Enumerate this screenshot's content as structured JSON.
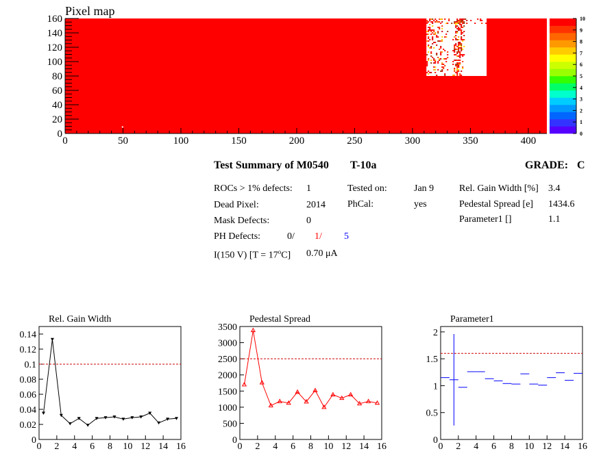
{
  "summary": {
    "title": "Test Summary of M0540",
    "test_label": "T-10a",
    "grade_label": "GRADE:",
    "grade": "C",
    "rocs_label": "ROCs > 1% defects:",
    "rocs_value": "1",
    "dead_label": "Dead Pixel:",
    "dead_value": "2014",
    "mask_label": "Mask Defects:",
    "mask_value": "0",
    "ph_label": "PH Defects:",
    "ph_v1": "0/",
    "ph_v2": "1/",
    "ph_v3": "5",
    "current_label_pre": "I(150 V) [T = 17",
    "current_label_sup": "o",
    "current_label_post": "C]",
    "current_value": "0.70 μA",
    "tested_label": "Tested on:",
    "tested_value": "Jan 9",
    "phcal_label": "PhCal:",
    "phcal_value": "yes",
    "gain_label": "Rel. Gain Width [%]",
    "gain_value": "3.4",
    "ped_label": "Pedestal Spread [e]",
    "ped_value": "1434.6",
    "par_label": "Parameter1 []",
    "par_value": "1.1",
    "colors": {
      "ph_v2": "#ff0000",
      "ph_v3": "#0000ff"
    }
  },
  "chart_data": [
    {
      "type": "heatmap",
      "title": "Pixel map",
      "xlim": [
        0,
        416
      ],
      "ylim": [
        0,
        160
      ],
      "x_ticks": [
        0,
        50,
        100,
        150,
        200,
        250,
        300,
        350,
        400
      ],
      "y_ticks": [
        0,
        20,
        40,
        60,
        80,
        100,
        120,
        140,
        160
      ],
      "z_ticks": [
        0,
        1,
        2,
        3,
        4,
        5,
        6,
        7,
        8,
        9,
        10
      ],
      "fill_value": 10,
      "dead_region": {
        "x": [
          312,
          364
        ],
        "y": [
          80,
          160
        ]
      },
      "isolated_dead_pixel": [
        49,
        10
      ],
      "colors": {
        "fill": "#ff0000",
        "dead": "#ffffff"
      }
    },
    {
      "type": "line",
      "title": "Rel. Gain Width",
      "xlim": [
        0,
        16
      ],
      "ylim": [
        0,
        0.15
      ],
      "x_ticks": [
        0,
        2,
        4,
        6,
        8,
        10,
        12,
        14,
        16
      ],
      "y_ticks": [
        0,
        0.02,
        0.04,
        0.06,
        0.08,
        0.1,
        0.12,
        0.14
      ],
      "y_tick_labels": [
        "0",
        "0.02",
        "0.04",
        "0.06",
        "0.08",
        "0.1",
        "0.12",
        "0.14"
      ],
      "x": [
        0.5,
        1.5,
        2.5,
        3.5,
        4.5,
        5.5,
        6.5,
        7.5,
        8.5,
        9.5,
        10.5,
        11.5,
        12.5,
        13.5,
        14.5,
        15.5
      ],
      "values": [
        0.035,
        0.133,
        0.032,
        0.021,
        0.028,
        0.019,
        0.028,
        0.029,
        0.03,
        0.027,
        0.029,
        0.03,
        0.035,
        0.022,
        0.027,
        0.028
      ],
      "threshold": 0.1,
      "colors": {
        "line": "#000000",
        "threshold": "#cc0000"
      }
    },
    {
      "type": "line",
      "title": "Pedestal Spread",
      "xlim": [
        0,
        16
      ],
      "ylim": [
        0,
        3500
      ],
      "x_ticks": [
        0,
        2,
        4,
        6,
        8,
        10,
        12,
        14,
        16
      ],
      "y_ticks": [
        0,
        500,
        1000,
        1500,
        2000,
        2500,
        3000,
        3500
      ],
      "y_tick_labels": [
        "0",
        "500",
        "1000",
        "1500",
        "2000",
        "2500",
        "3000",
        "3500"
      ],
      "x": [
        0.5,
        1.5,
        2.5,
        3.5,
        4.5,
        5.5,
        6.5,
        7.5,
        8.5,
        9.5,
        10.5,
        11.5,
        12.5,
        13.5,
        14.5,
        15.5
      ],
      "values": [
        1700,
        3380,
        1760,
        1050,
        1180,
        1130,
        1470,
        1170,
        1520,
        1000,
        1390,
        1280,
        1390,
        1110,
        1180,
        1130
      ],
      "threshold": 2500,
      "colors": {
        "line": "#ff0000",
        "threshold": "#cc0000"
      }
    },
    {
      "type": "scatter",
      "title": "Parameter1",
      "xlim": [
        0,
        16
      ],
      "ylim": [
        0,
        2.1
      ],
      "x_ticks": [
        0,
        2,
        4,
        6,
        8,
        10,
        12,
        14,
        16
      ],
      "y_ticks": [
        0,
        0.5,
        1,
        1.5,
        2
      ],
      "y_tick_labels": [
        "0",
        "0.5",
        "1",
        "1.5",
        "2"
      ],
      "x": [
        0.5,
        1.5,
        2.5,
        3.5,
        4.5,
        5.5,
        6.5,
        7.5,
        8.5,
        9.5,
        10.5,
        11.5,
        12.5,
        13.5,
        14.5,
        15.5
      ],
      "values": [
        1.15,
        1.11,
        0.97,
        1.26,
        1.26,
        1.13,
        1.09,
        1.04,
        1.03,
        1.22,
        1.03,
        1.01,
        1.15,
        1.24,
        1.1,
        1.23
      ],
      "errors": [
        0,
        0.85,
        0,
        0,
        0,
        0,
        0,
        0,
        0,
        0,
        0,
        0,
        0,
        0,
        0,
        0
      ],
      "threshold": 1.6,
      "colors": {
        "marker": "#0000ff",
        "threshold": "#cc0000"
      }
    }
  ]
}
